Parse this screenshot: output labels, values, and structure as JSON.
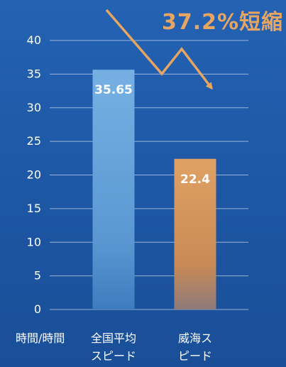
{
  "chart_data": {
    "type": "bar",
    "headline": "37.2%短縮",
    "unit_label": "時間/時間",
    "categories": [
      "全国平均\nスピード",
      "威海ス\nピード"
    ],
    "values": [
      35.65,
      22.4
    ],
    "value_labels": [
      "35.65",
      "22.4"
    ],
    "ylim": [
      0,
      40
    ],
    "yticks": [
      0,
      5,
      10,
      15,
      20,
      25,
      30,
      35,
      40
    ],
    "grid": true,
    "bar_colors": [
      "#6fa9dd",
      "#dc9a5c"
    ],
    "accent_color": "#e7a562",
    "background_color": "#1f5aa8"
  }
}
